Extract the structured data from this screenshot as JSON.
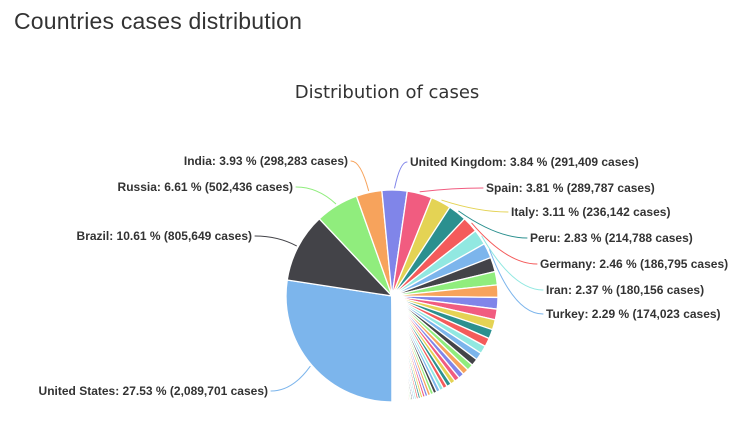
{
  "page": {
    "title": "Countries cases distribution"
  },
  "chart_data": {
    "type": "pie",
    "title": "Distribution of cases",
    "label_format": "{name}: {percent} % ({cases} cases)",
    "legend": "none",
    "start_angle_deg": 180,
    "direction": "clockwise",
    "order": "descending",
    "text_color": "#333333",
    "palette": [
      "#7cb5ec",
      "#434348",
      "#90ed7d",
      "#f7a35c",
      "#8085e9",
      "#f15c80",
      "#e4d354",
      "#2b908f",
      "#f45b5b",
      "#91e8e1"
    ],
    "slices": [
      {
        "name": "United States",
        "percent": 27.53,
        "cases": "2,089,701",
        "label": "United States: 27.53 % (2,089,701 cases)"
      },
      {
        "name": "Brazil",
        "percent": 10.61,
        "cases": "805,649",
        "label": "Brazil: 10.61 % (805,649 cases)"
      },
      {
        "name": "Russia",
        "percent": 6.61,
        "cases": "502,436",
        "label": "Russia: 6.61 % (502,436 cases)"
      },
      {
        "name": "India",
        "percent": 3.93,
        "cases": "298,283",
        "label": "India: 3.93 % (298,283 cases)"
      },
      {
        "name": "United Kingdom",
        "percent": 3.84,
        "cases": "291,409",
        "label": "United Kingdom: 3.84 % (291,409 cases)"
      },
      {
        "name": "Spain",
        "percent": 3.81,
        "cases": "289,787",
        "label": "Spain: 3.81 % (289,787 cases)"
      },
      {
        "name": "Italy",
        "percent": 3.11,
        "cases": "236,142",
        "label": "Italy: 3.11 % (236,142 cases)"
      },
      {
        "name": "Peru",
        "percent": 2.83,
        "cases": "214,788",
        "label": "Peru: 2.83 % (214,788 cases)"
      },
      {
        "name": "Germany",
        "percent": 2.46,
        "cases": "186,795",
        "label": "Germany: 2.46 % (186,795 cases)"
      },
      {
        "name": "Iran",
        "percent": 2.37,
        "cases": "180,156",
        "label": "Iran: 2.37 % (180,156 cases)"
      },
      {
        "name": "Turkey",
        "percent": 2.29,
        "cases": "174,023",
        "label": "Turkey: 2.29 % (174,023 cases)"
      }
    ],
    "others_unlabeled_percents": [
      2.2,
      2.046,
      1.903,
      1.77,
      1.646,
      1.531,
      1.424,
      1.324,
      1.231,
      1.145,
      1.065,
      0.99,
      0.921,
      0.857,
      0.797,
      0.741,
      0.689,
      0.641,
      0.596,
      0.554,
      0.515,
      0.479,
      0.446,
      0.415,
      0.386,
      0.359,
      0.334,
      0.31,
      0.288,
      0.268,
      0.249,
      0.232,
      0.216,
      0.201,
      0.187,
      0.174,
      0.161,
      0.15,
      0.14,
      0.13,
      0.121,
      0.112,
      0.104,
      0.097,
      0.09,
      0.084,
      0.078,
      0.073,
      0.068,
      0.063,
      0.059,
      0.055,
      0.051,
      0.047,
      0.044,
      0.041,
      0.038,
      0.035,
      0.033,
      0.031
    ]
  }
}
